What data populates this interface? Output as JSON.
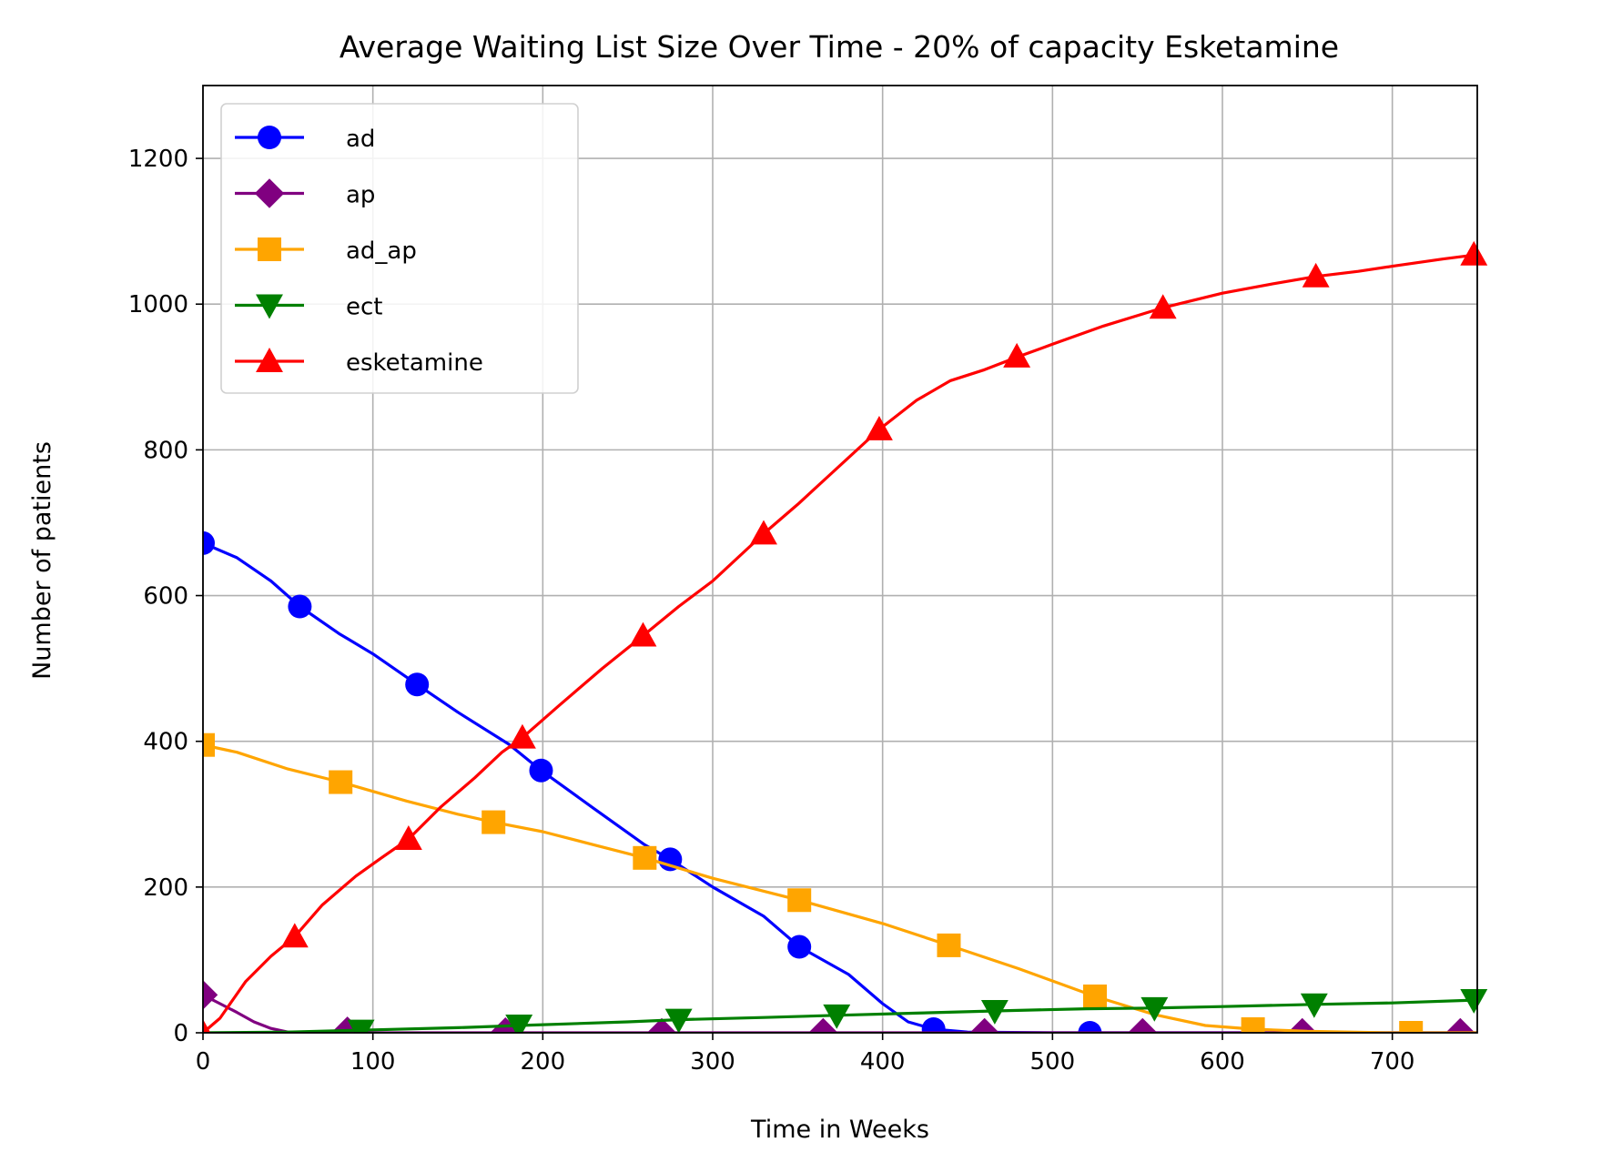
{
  "chart_data": {
    "type": "line",
    "title": "Average Waiting List Size Over Time - 20% of capacity Esketamine",
    "xlabel": "Time in Weeks",
    "ylabel": "Number of patients",
    "xlim": [
      0,
      750
    ],
    "ylim": [
      0,
      1300
    ],
    "xticks": [
      0,
      100,
      200,
      300,
      400,
      500,
      600,
      700
    ],
    "yticks": [
      0,
      200,
      400,
      600,
      800,
      1000,
      1200
    ],
    "grid": true,
    "legend_position": "top-left",
    "series": [
      {
        "name": "ad",
        "color": "#0000ff",
        "marker": "circle",
        "points": [
          [
            0,
            672
          ],
          [
            20,
            652
          ],
          [
            40,
            620
          ],
          [
            57,
            585
          ],
          [
            80,
            548
          ],
          [
            100,
            520
          ],
          [
            126,
            478
          ],
          [
            150,
            440
          ],
          [
            180,
            396
          ],
          [
            199,
            360
          ],
          [
            230,
            308
          ],
          [
            260,
            258
          ],
          [
            275,
            238
          ],
          [
            300,
            200
          ],
          [
            330,
            160
          ],
          [
            351,
            118
          ],
          [
            380,
            80
          ],
          [
            400,
            40
          ],
          [
            415,
            15
          ],
          [
            430,
            5
          ],
          [
            450,
            1
          ],
          [
            500,
            0
          ],
          [
            522,
            0
          ],
          [
            600,
            0
          ],
          [
            700,
            0
          ],
          [
            750,
            0
          ]
        ],
        "marker_points": [
          [
            0,
            672
          ],
          [
            57,
            585
          ],
          [
            126,
            478
          ],
          [
            199,
            360
          ],
          [
            275,
            238
          ],
          [
            351,
            118
          ],
          [
            430,
            5
          ],
          [
            522,
            0
          ]
        ]
      },
      {
        "name": "ap",
        "color": "#800080",
        "marker": "diamond",
        "points": [
          [
            0,
            52
          ],
          [
            10,
            40
          ],
          [
            20,
            28
          ],
          [
            30,
            15
          ],
          [
            40,
            6
          ],
          [
            50,
            1
          ],
          [
            60,
            0
          ],
          [
            100,
            0
          ],
          [
            200,
            0
          ],
          [
            300,
            0
          ],
          [
            400,
            0
          ],
          [
            500,
            0
          ],
          [
            600,
            0
          ],
          [
            700,
            0
          ],
          [
            750,
            0
          ]
        ],
        "marker_points": [
          [
            0,
            52
          ],
          [
            85,
            2
          ],
          [
            178,
            1
          ],
          [
            270,
            0
          ],
          [
            365,
            0
          ],
          [
            460,
            0
          ],
          [
            553,
            0
          ],
          [
            647,
            0
          ],
          [
            740,
            0
          ]
        ]
      },
      {
        "name": "ad_ap",
        "color": "#ffa500",
        "marker": "square",
        "points": [
          [
            0,
            395
          ],
          [
            20,
            385
          ],
          [
            50,
            362
          ],
          [
            81,
            344
          ],
          [
            120,
            318
          ],
          [
            150,
            300
          ],
          [
            171,
            289
          ],
          [
            200,
            276
          ],
          [
            230,
            258
          ],
          [
            260,
            240
          ],
          [
            300,
            212
          ],
          [
            351,
            182
          ],
          [
            400,
            150
          ],
          [
            439,
            120
          ],
          [
            480,
            88
          ],
          [
            525,
            50
          ],
          [
            560,
            25
          ],
          [
            590,
            10
          ],
          [
            618,
            5
          ],
          [
            650,
            2
          ],
          [
            700,
            0
          ],
          [
            711,
            0
          ],
          [
            750,
            0
          ]
        ],
        "marker_points": [
          [
            0,
            395
          ],
          [
            81,
            344
          ],
          [
            171,
            289
          ],
          [
            260,
            240
          ],
          [
            351,
            182
          ],
          [
            439,
            120
          ],
          [
            525,
            50
          ],
          [
            618,
            5
          ],
          [
            711,
            0
          ]
        ]
      },
      {
        "name": "ect",
        "color": "#008000",
        "marker": "triangle-down",
        "points": [
          [
            0,
            0
          ],
          [
            50,
            1
          ],
          [
            100,
            4
          ],
          [
            150,
            7
          ],
          [
            186,
            10
          ],
          [
            250,
            15
          ],
          [
            280,
            18
          ],
          [
            330,
            21
          ],
          [
            373,
            24
          ],
          [
            420,
            27
          ],
          [
            466,
            30
          ],
          [
            520,
            33
          ],
          [
            560,
            34
          ],
          [
            600,
            36
          ],
          [
            654,
            39
          ],
          [
            700,
            41
          ],
          [
            750,
            45
          ]
        ],
        "marker_points": [
          [
            93,
            3
          ],
          [
            186,
            10
          ],
          [
            280,
            18
          ],
          [
            373,
            24
          ],
          [
            466,
            30
          ],
          [
            560,
            34
          ],
          [
            654,
            39
          ],
          [
            748,
            45
          ]
        ]
      },
      {
        "name": "esketamine",
        "color": "#ff0000",
        "marker": "triangle-up",
        "points": [
          [
            0,
            0
          ],
          [
            10,
            20
          ],
          [
            25,
            70
          ],
          [
            40,
            105
          ],
          [
            54,
            132
          ],
          [
            70,
            175
          ],
          [
            90,
            215
          ],
          [
            105,
            240
          ],
          [
            121,
            266
          ],
          [
            140,
            310
          ],
          [
            160,
            350
          ],
          [
            176,
            385
          ],
          [
            188,
            405
          ],
          [
            210,
            450
          ],
          [
            235,
            500
          ],
          [
            259,
            545
          ],
          [
            280,
            585
          ],
          [
            300,
            620
          ],
          [
            330,
            685
          ],
          [
            350,
            725
          ],
          [
            370,
            768
          ],
          [
            398,
            828
          ],
          [
            420,
            868
          ],
          [
            440,
            895
          ],
          [
            460,
            910
          ],
          [
            480,
            928
          ],
          [
            500,
            945
          ],
          [
            530,
            970
          ],
          [
            565,
            995
          ],
          [
            600,
            1015
          ],
          [
            630,
            1028
          ],
          [
            655,
            1038
          ],
          [
            680,
            1045
          ],
          [
            700,
            1052
          ],
          [
            730,
            1062
          ],
          [
            750,
            1068
          ]
        ],
        "marker_points": [
          [
            0,
            0
          ],
          [
            54,
            132
          ],
          [
            121,
            266
          ],
          [
            188,
            405
          ],
          [
            259,
            545
          ],
          [
            330,
            685
          ],
          [
            398,
            828
          ],
          [
            479,
            928
          ],
          [
            565,
            995
          ],
          [
            655,
            1038
          ],
          [
            748,
            1068
          ]
        ]
      }
    ]
  }
}
